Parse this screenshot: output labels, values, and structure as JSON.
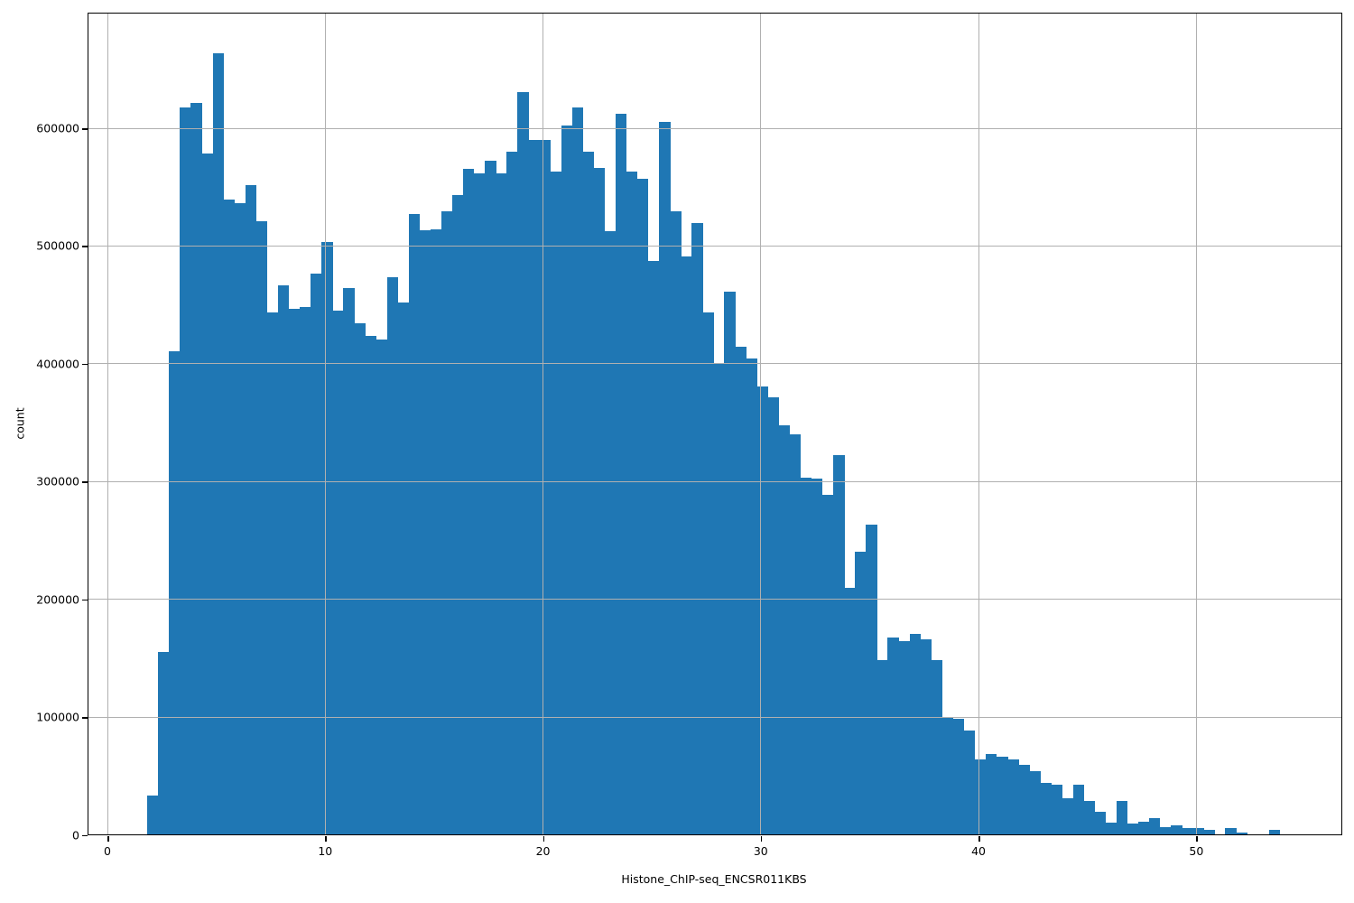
{
  "figure": {
    "background": "#ffffff",
    "bar_color": "#1f77b4",
    "grid_color": "#b0b0b0",
    "spine_color": "#000000",
    "text_color": "#000000"
  },
  "chart_data": {
    "type": "bar",
    "subtype": "histogram",
    "title": "",
    "xlabel": "Histone_ChIP-seq_ENCSR011KBS",
    "ylabel": "count",
    "grid": true,
    "legend": false,
    "x_ticks": [
      0,
      10,
      20,
      30,
      40,
      50
    ],
    "x_tick_labels": [
      "0",
      "10",
      "20",
      "30",
      "40",
      "50"
    ],
    "y_ticks": [
      0,
      100000,
      200000,
      300000,
      400000,
      500000,
      600000
    ],
    "y_tick_labels": [
      "0",
      "100000",
      "200000",
      "300000",
      "400000",
      "500000",
      "600000"
    ],
    "xlim": [
      -0.85,
      56.68
    ],
    "ylim": [
      0,
      697000
    ],
    "bin_start": 1.85,
    "bin_width": 0.5,
    "counts": [
      33000,
      155000,
      410000,
      617000,
      621000,
      578000,
      663000,
      539000,
      536000,
      551000,
      521000,
      443000,
      466000,
      446000,
      448000,
      476000,
      503000,
      445000,
      464000,
      434000,
      423000,
      420000,
      473000,
      452000,
      527000,
      513000,
      514000,
      529000,
      543000,
      565000,
      561000,
      572000,
      561000,
      580000,
      630000,
      590000,
      590000,
      563000,
      602000,
      617000,
      580000,
      566000,
      512000,
      612000,
      563000,
      557000,
      487000,
      605000,
      529000,
      491000,
      519000,
      443000,
      400000,
      461000,
      414000,
      404000,
      380000,
      371000,
      347000,
      340000,
      303000,
      302000,
      288000,
      322000,
      209000,
      240000,
      263000,
      148000,
      167000,
      164000,
      170000,
      166000,
      148000,
      100000,
      98000,
      88000,
      64000,
      68000,
      66000,
      64000,
      59000,
      54000,
      44000,
      42000,
      31000,
      42000,
      28000,
      19000,
      10000,
      28000,
      9000,
      11000,
      14000,
      6000,
      7500,
      5500,
      5000,
      3600,
      0,
      5000,
      1500,
      0,
      0,
      3500
    ]
  }
}
